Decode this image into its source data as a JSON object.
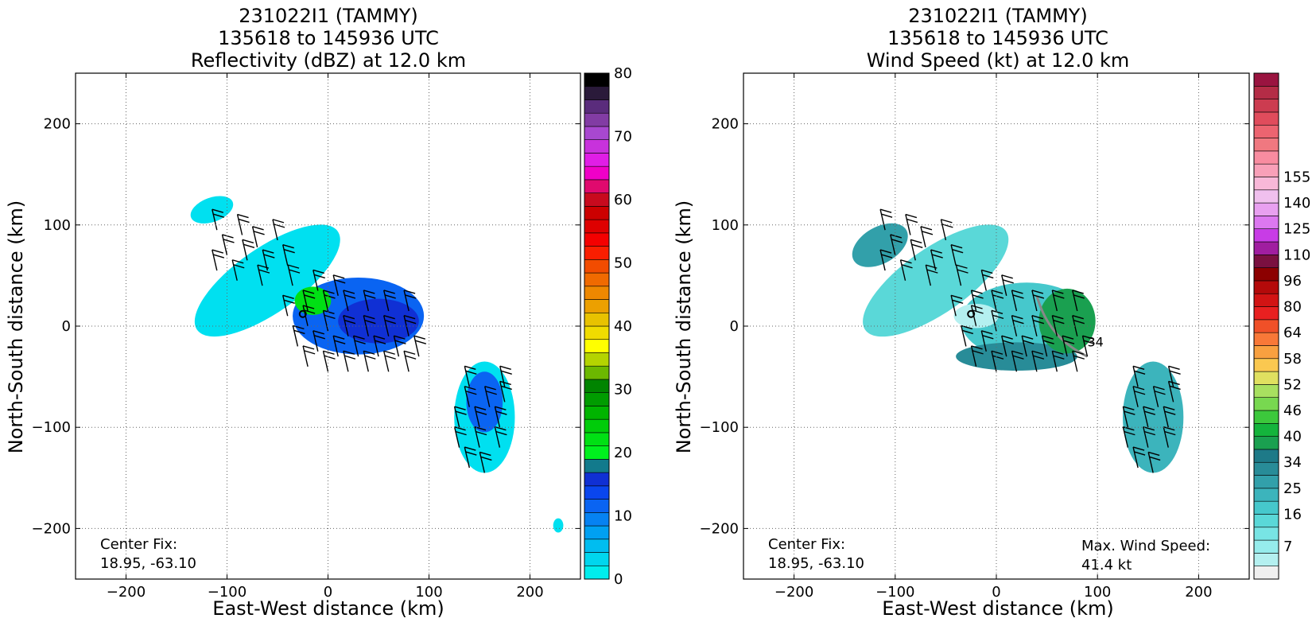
{
  "chart_data": [
    {
      "type": "heatmap",
      "title": [
        "231022I1 (TAMMY)",
        "135618 to 145936 UTC",
        "Reflectivity (dBZ) at 12.0 km"
      ],
      "xlabel": "East-West distance (km)",
      "ylabel": "North-South distance (km)",
      "xlim": [
        -250,
        250
      ],
      "ylim": [
        -250,
        250
      ],
      "xticks": [
        -200,
        -100,
        0,
        100,
        200
      ],
      "yticks": [
        -200,
        -100,
        0,
        100,
        200
      ],
      "grid": true,
      "center_fix": {
        "label": "Center Fix:",
        "value": "18.95, -63.10"
      },
      "colorbar": {
        "min": 0,
        "max": 80,
        "tick_values": [
          0,
          10,
          20,
          30,
          40,
          50,
          60,
          70,
          80
        ],
        "colors": [
          "#00eded",
          "#00d6ee",
          "#00bdf0",
          "#00a0f2",
          "#0682f2",
          "#0a64f2",
          "#0a46ee",
          "#1030d4",
          "#127a8c",
          "#00f01e",
          "#00e014",
          "#00cc0a",
          "#00b400",
          "#009c00",
          "#008400",
          "#6cb800",
          "#b4d400",
          "#ffff00",
          "#f0dc00",
          "#e8c200",
          "#eca000",
          "#ee8800",
          "#f06a00",
          "#f24c00",
          "#fa1e00",
          "#f40000",
          "#de0000",
          "#cc0000",
          "#c80a1e",
          "#e00a6e",
          "#f000c8",
          "#e01ee6",
          "#c832dc",
          "#a848d0",
          "#823ca4",
          "#5a2c7c",
          "#2a1a3a",
          "#000000"
        ]
      },
      "blobs": [
        {
          "name": "main-band",
          "color": "#00e0f0",
          "center": [
            -60,
            45
          ],
          "radius": [
            85,
            32
          ],
          "rotation": -35
        },
        {
          "name": "core",
          "color": "#0a64f2",
          "center": [
            30,
            10
          ],
          "radius": [
            65,
            38
          ],
          "rotation": 0
        },
        {
          "name": "core-inner",
          "color": "#1030d4",
          "center": [
            50,
            5
          ],
          "radius": [
            40,
            22
          ],
          "rotation": 0
        },
        {
          "name": "convective",
          "color": "#00e014",
          "center": [
            -15,
            25
          ],
          "radius": [
            18,
            14
          ],
          "rotation": 0
        },
        {
          "name": "outer-band",
          "color": "#00e0f0",
          "center": [
            155,
            -90
          ],
          "radius": [
            30,
            55
          ],
          "rotation": 0
        },
        {
          "name": "outer-core",
          "color": "#0a64f2",
          "center": [
            155,
            -75
          ],
          "radius": [
            18,
            30
          ],
          "rotation": 0
        },
        {
          "name": "nw-fragment",
          "color": "#00e0f0",
          "center": [
            -115,
            115
          ],
          "radius": [
            22,
            12
          ],
          "rotation": -20
        },
        {
          "name": "se-speck",
          "color": "#00e0f0",
          "center": [
            228,
            -197
          ],
          "radius": [
            5,
            7
          ],
          "rotation": 0
        }
      ],
      "barbs": [
        [
          -110,
          95
        ],
        [
          -85,
          90
        ],
        [
          -70,
          78
        ],
        [
          -50,
          85
        ],
        [
          -100,
          70
        ],
        [
          -80,
          65
        ],
        [
          -60,
          55
        ],
        [
          -40,
          60
        ],
        [
          -110,
          55
        ],
        [
          -90,
          45
        ],
        [
          -65,
          40
        ],
        [
          -35,
          40
        ],
        [
          -10,
          35
        ],
        [
          10,
          30
        ],
        [
          -40,
          10
        ],
        [
          -20,
          0
        ],
        [
          0,
          -5
        ],
        [
          20,
          -10
        ],
        [
          40,
          -10
        ],
        [
          60,
          -10
        ],
        [
          80,
          -10
        ],
        [
          -30,
          -20
        ],
        [
          -10,
          -25
        ],
        [
          10,
          -30
        ],
        [
          30,
          -30
        ],
        [
          50,
          -30
        ],
        [
          70,
          -30
        ],
        [
          90,
          -30
        ],
        [
          -20,
          -40
        ],
        [
          0,
          -45
        ],
        [
          20,
          -45
        ],
        [
          40,
          -45
        ],
        [
          60,
          -45
        ],
        [
          80,
          -45
        ],
        [
          20,
          15
        ],
        [
          40,
          15
        ],
        [
          60,
          15
        ],
        [
          80,
          15
        ],
        [
          0,
          15
        ],
        [
          -20,
          15
        ],
        [
          140,
          -80
        ],
        [
          160,
          -80
        ],
        [
          175,
          -75
        ],
        [
          130,
          -100
        ],
        [
          150,
          -100
        ],
        [
          170,
          -100
        ],
        [
          130,
          -120
        ],
        [
          150,
          -120
        ],
        [
          170,
          -120
        ],
        [
          140,
          -140
        ],
        [
          155,
          -145
        ],
        [
          175,
          -60
        ],
        [
          140,
          -60
        ]
      ],
      "center_marker": [
        -25,
        12
      ]
    },
    {
      "type": "heatmap",
      "title": [
        "231022I1 (TAMMY)",
        "135618 to 145936 UTC",
        "Wind Speed (kt) at 12.0 km"
      ],
      "xlabel": "East-West distance (km)",
      "ylabel": "North-South distance (km)",
      "xlim": [
        -250,
        250
      ],
      "ylim": [
        -250,
        250
      ],
      "xticks": [
        -200,
        -100,
        0,
        100,
        200
      ],
      "yticks": [
        -200,
        -100,
        0,
        100,
        200
      ],
      "grid": true,
      "center_fix": {
        "label": "Center Fix:",
        "value": "18.95, -63.10"
      },
      "max_wind": {
        "label": "Max. Wind Speed:",
        "value": "41.4 kt"
      },
      "contour_label": "34",
      "colorbar": {
        "min": 0,
        "max": 160,
        "tick_values": [
          7,
          16,
          25,
          34,
          40,
          46,
          52,
          58,
          64,
          80,
          96,
          110,
          125,
          140,
          155
        ],
        "tick_positions": [
          2.5,
          5,
          7,
          9,
          11,
          13,
          15,
          17,
          19,
          21,
          23,
          25,
          27,
          29,
          31
        ],
        "colors": [
          "#f0f0f0",
          "#b4f0f0",
          "#96ecec",
          "#78e4e4",
          "#5ad8d8",
          "#46c8cc",
          "#3cb4bc",
          "#32a0aa",
          "#288c98",
          "#1e7a88",
          "#1aa050",
          "#14b43c",
          "#3cc83c",
          "#78d850",
          "#a8e060",
          "#e0e060",
          "#fac850",
          "#f8a040",
          "#f87838",
          "#f05028",
          "#e82020",
          "#d21414",
          "#b40a0a",
          "#8c0000",
          "#7a1040",
          "#a01ea0",
          "#c83ce6",
          "#dc78f0",
          "#e8a0f0",
          "#f0c0ee",
          "#f8b8d8",
          "#f8a0b8",
          "#f88ca0",
          "#f07880",
          "#ec6470",
          "#e04c5c",
          "#cc3c50",
          "#b42c46",
          "#9a1440"
        ]
      },
      "blobs": [
        {
          "name": "main-band",
          "color": "#5ad8d8",
          "center": [
            -60,
            45
          ],
          "radius": [
            85,
            32
          ],
          "rotation": -35
        },
        {
          "name": "nw-dark",
          "color": "#32a0aa",
          "center": [
            -115,
            80
          ],
          "radius": [
            30,
            18
          ],
          "rotation": -30
        },
        {
          "name": "core",
          "color": "#46c8cc",
          "center": [
            30,
            5
          ],
          "radius": [
            65,
            38
          ],
          "rotation": 0
        },
        {
          "name": "south-dark",
          "color": "#288c98",
          "center": [
            20,
            -30
          ],
          "radius": [
            60,
            14
          ],
          "rotation": 0
        },
        {
          "name": "green-core",
          "color": "#1aa050",
          "center": [
            70,
            5
          ],
          "radius": [
            28,
            32
          ],
          "rotation": 0
        },
        {
          "name": "light-patch",
          "color": "#b4f0f0",
          "center": [
            -20,
            10
          ],
          "radius": [
            22,
            12
          ],
          "rotation": 0
        },
        {
          "name": "outer-band",
          "color": "#3cb4bc",
          "center": [
            155,
            -90
          ],
          "radius": [
            30,
            55
          ],
          "rotation": 0
        }
      ],
      "barbs": [
        [
          -110,
          95
        ],
        [
          -85,
          90
        ],
        [
          -70,
          78
        ],
        [
          -50,
          85
        ],
        [
          -100,
          70
        ],
        [
          -80,
          65
        ],
        [
          -60,
          55
        ],
        [
          -40,
          60
        ],
        [
          -110,
          55
        ],
        [
          -90,
          45
        ],
        [
          -65,
          40
        ],
        [
          -35,
          40
        ],
        [
          -10,
          35
        ],
        [
          10,
          30
        ],
        [
          -40,
          10
        ],
        [
          -20,
          0
        ],
        [
          0,
          -5
        ],
        [
          20,
          -10
        ],
        [
          40,
          -10
        ],
        [
          60,
          -10
        ],
        [
          80,
          -10
        ],
        [
          -30,
          -20
        ],
        [
          -10,
          -25
        ],
        [
          10,
          -30
        ],
        [
          30,
          -30
        ],
        [
          50,
          -30
        ],
        [
          70,
          -30
        ],
        [
          90,
          -30
        ],
        [
          -20,
          -40
        ],
        [
          0,
          -45
        ],
        [
          20,
          -45
        ],
        [
          40,
          -45
        ],
        [
          60,
          -45
        ],
        [
          80,
          -45
        ],
        [
          20,
          15
        ],
        [
          40,
          15
        ],
        [
          60,
          15
        ],
        [
          80,
          15
        ],
        [
          0,
          15
        ],
        [
          -20,
          15
        ],
        [
          140,
          -80
        ],
        [
          160,
          -80
        ],
        [
          175,
          -75
        ],
        [
          130,
          -100
        ],
        [
          150,
          -100
        ],
        [
          170,
          -100
        ],
        [
          130,
          -120
        ],
        [
          150,
          -120
        ],
        [
          170,
          -120
        ],
        [
          140,
          -140
        ],
        [
          155,
          -145
        ],
        [
          175,
          -60
        ],
        [
          140,
          -60
        ]
      ],
      "center_marker": [
        -25,
        12
      ]
    }
  ]
}
